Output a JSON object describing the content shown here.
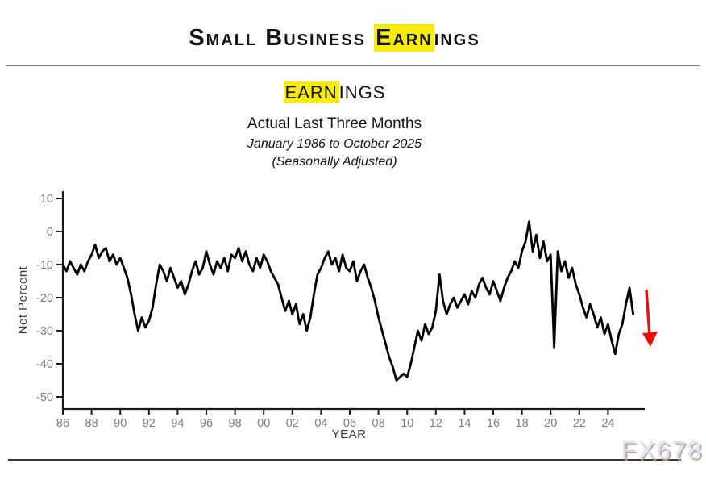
{
  "title": {
    "pre": "Small Business ",
    "highlight": "Earn",
    "post": "ings"
  },
  "heading2": {
    "highlight": "EARN",
    "post": "INGS"
  },
  "subtitle1": "Actual Last Three Months",
  "subtitle2": "January 1986 to October 2025",
  "subtitle3": "(Seasonally Adjusted)",
  "watermark": {
    "text": "FX678"
  },
  "colors": {
    "highlight_yellow": "#f7eb0e",
    "line_black": "#000000",
    "arrow_red": "#e8100c",
    "axis_dark": "#1a1a1a",
    "tick_gray": "#7e7e7e",
    "axis_label_gray": "#3c3c3c",
    "watermark_blue": "#d3e2f6",
    "watermark_shadow_tan": "#c0a98e"
  },
  "chart_data": {
    "type": "line",
    "title": "EARNINGS",
    "subtitle": "Actual Last Three Months",
    "period": "January 1986 to October 2025",
    "note": "(Seasonally Adjusted)",
    "xlabel": "YEAR",
    "ylabel": "Net Percent",
    "ylim": [
      -50,
      10
    ],
    "xlim": [
      1985.7,
      2026.3
    ],
    "grid": false,
    "legend": "none",
    "yticks": [
      10,
      0,
      -10,
      -20,
      -30,
      -40,
      -50
    ],
    "xticks": [
      [
        1986,
        "86"
      ],
      [
        1988,
        "88"
      ],
      [
        1990,
        "90"
      ],
      [
        1992,
        "92"
      ],
      [
        1994,
        "94"
      ],
      [
        1996,
        "96"
      ],
      [
        1998,
        "98"
      ],
      [
        2000,
        "00"
      ],
      [
        2002,
        "02"
      ],
      [
        2004,
        "04"
      ],
      [
        2006,
        "06"
      ],
      [
        2008,
        "08"
      ],
      [
        2010,
        "10"
      ],
      [
        2012,
        "12"
      ],
      [
        2014,
        "14"
      ],
      [
        2016,
        "16"
      ],
      [
        2018,
        "18"
      ],
      [
        2020,
        "20"
      ],
      [
        2022,
        "22"
      ],
      [
        2024,
        "24"
      ]
    ],
    "annotation": {
      "type": "down-arrow",
      "color": "#e8100c",
      "meaning": "latest reading falling",
      "x": 2026.7,
      "y_from": -17,
      "y_to": -33
    },
    "series": [
      {
        "name": "Actual earnings last three months, net percent (quarterly readings)",
        "points": [
          [
            1986.0,
            -10
          ],
          [
            1986.25,
            -12
          ],
          [
            1986.5,
            -9
          ],
          [
            1986.75,
            -11
          ],
          [
            1987.0,
            -13
          ],
          [
            1987.25,
            -10
          ],
          [
            1987.5,
            -12
          ],
          [
            1987.75,
            -9
          ],
          [
            1988.0,
            -7
          ],
          [
            1988.25,
            -4
          ],
          [
            1988.5,
            -8
          ],
          [
            1988.75,
            -6
          ],
          [
            1989.0,
            -5
          ],
          [
            1989.25,
            -9
          ],
          [
            1989.5,
            -7
          ],
          [
            1989.75,
            -10
          ],
          [
            1990.0,
            -8
          ],
          [
            1990.25,
            -11
          ],
          [
            1990.5,
            -14
          ],
          [
            1990.75,
            -19
          ],
          [
            1991.0,
            -25
          ],
          [
            1991.25,
            -30
          ],
          [
            1991.5,
            -26
          ],
          [
            1991.75,
            -29
          ],
          [
            1992.0,
            -27
          ],
          [
            1992.25,
            -23
          ],
          [
            1992.5,
            -16
          ],
          [
            1992.75,
            -10
          ],
          [
            1993.0,
            -12
          ],
          [
            1993.25,
            -15
          ],
          [
            1993.5,
            -11
          ],
          [
            1993.75,
            -14
          ],
          [
            1994.0,
            -17
          ],
          [
            1994.25,
            -15
          ],
          [
            1994.5,
            -19
          ],
          [
            1994.75,
            -16
          ],
          [
            1995.0,
            -12
          ],
          [
            1995.25,
            -9
          ],
          [
            1995.5,
            -13
          ],
          [
            1995.75,
            -11
          ],
          [
            1996.0,
            -6
          ],
          [
            1996.25,
            -10
          ],
          [
            1996.5,
            -13
          ],
          [
            1996.75,
            -9
          ],
          [
            1997.0,
            -11
          ],
          [
            1997.25,
            -8
          ],
          [
            1997.5,
            -12
          ],
          [
            1997.75,
            -7
          ],
          [
            1998.0,
            -8
          ],
          [
            1998.25,
            -5
          ],
          [
            1998.5,
            -9
          ],
          [
            1998.75,
            -6
          ],
          [
            1999.0,
            -10
          ],
          [
            1999.25,
            -12
          ],
          [
            1999.5,
            -8
          ],
          [
            1999.75,
            -11
          ],
          [
            2000.0,
            -7
          ],
          [
            2000.25,
            -9
          ],
          [
            2000.5,
            -12
          ],
          [
            2000.75,
            -14
          ],
          [
            2001.0,
            -16
          ],
          [
            2001.25,
            -20
          ],
          [
            2001.5,
            -24
          ],
          [
            2001.75,
            -21
          ],
          [
            2002.0,
            -25
          ],
          [
            2002.25,
            -22
          ],
          [
            2002.5,
            -28
          ],
          [
            2002.75,
            -25
          ],
          [
            2003.0,
            -30
          ],
          [
            2003.25,
            -26
          ],
          [
            2003.5,
            -19
          ],
          [
            2003.75,
            -13
          ],
          [
            2004.0,
            -11
          ],
          [
            2004.25,
            -8
          ],
          [
            2004.5,
            -6
          ],
          [
            2004.75,
            -10
          ],
          [
            2005.0,
            -8
          ],
          [
            2005.25,
            -12
          ],
          [
            2005.5,
            -7
          ],
          [
            2005.75,
            -11
          ],
          [
            2006.0,
            -12
          ],
          [
            2006.25,
            -9
          ],
          [
            2006.5,
            -15
          ],
          [
            2006.75,
            -12
          ],
          [
            2007.0,
            -10
          ],
          [
            2007.25,
            -14
          ],
          [
            2007.5,
            -17
          ],
          [
            2007.75,
            -21
          ],
          [
            2008.0,
            -26
          ],
          [
            2008.25,
            -30
          ],
          [
            2008.5,
            -34
          ],
          [
            2008.75,
            -38
          ],
          [
            2009.0,
            -41
          ],
          [
            2009.25,
            -45
          ],
          [
            2009.5,
            -44
          ],
          [
            2009.75,
            -43
          ],
          [
            2010.0,
            -44
          ],
          [
            2010.25,
            -40
          ],
          [
            2010.5,
            -35
          ],
          [
            2010.75,
            -30
          ],
          [
            2011.0,
            -33
          ],
          [
            2011.25,
            -28
          ],
          [
            2011.5,
            -31
          ],
          [
            2011.75,
            -29
          ],
          [
            2012.0,
            -24
          ],
          [
            2012.25,
            -13
          ],
          [
            2012.5,
            -21
          ],
          [
            2012.75,
            -25
          ],
          [
            2013.0,
            -22
          ],
          [
            2013.25,
            -20
          ],
          [
            2013.5,
            -23
          ],
          [
            2013.75,
            -21
          ],
          [
            2014.0,
            -19
          ],
          [
            2014.25,
            -22
          ],
          [
            2014.5,
            -18
          ],
          [
            2014.75,
            -20
          ],
          [
            2015.0,
            -16
          ],
          [
            2015.25,
            -14
          ],
          [
            2015.5,
            -17
          ],
          [
            2015.75,
            -19
          ],
          [
            2016.0,
            -15
          ],
          [
            2016.25,
            -18
          ],
          [
            2016.5,
            -21
          ],
          [
            2016.75,
            -17
          ],
          [
            2017.0,
            -14
          ],
          [
            2017.25,
            -12
          ],
          [
            2017.5,
            -9
          ],
          [
            2017.75,
            -11
          ],
          [
            2018.0,
            -6
          ],
          [
            2018.25,
            -3
          ],
          [
            2018.5,
            3
          ],
          [
            2018.75,
            -6
          ],
          [
            2019.0,
            -1
          ],
          [
            2019.25,
            -8
          ],
          [
            2019.5,
            -3
          ],
          [
            2019.75,
            -9
          ],
          [
            2020.0,
            -7
          ],
          [
            2020.25,
            -35
          ],
          [
            2020.5,
            -6
          ],
          [
            2020.75,
            -12
          ],
          [
            2021.0,
            -9
          ],
          [
            2021.25,
            -14
          ],
          [
            2021.5,
            -11
          ],
          [
            2021.75,
            -16
          ],
          [
            2022.0,
            -19
          ],
          [
            2022.25,
            -23
          ],
          [
            2022.5,
            -26
          ],
          [
            2022.75,
            -22
          ],
          [
            2023.0,
            -25
          ],
          [
            2023.25,
            -29
          ],
          [
            2023.5,
            -26
          ],
          [
            2023.75,
            -31
          ],
          [
            2024.0,
            -28
          ],
          [
            2024.25,
            -33
          ],
          [
            2024.5,
            -37
          ],
          [
            2024.75,
            -31
          ],
          [
            2025.0,
            -28
          ],
          [
            2025.25,
            -22
          ],
          [
            2025.5,
            -17
          ],
          [
            2025.75,
            -25
          ]
        ]
      }
    ]
  }
}
